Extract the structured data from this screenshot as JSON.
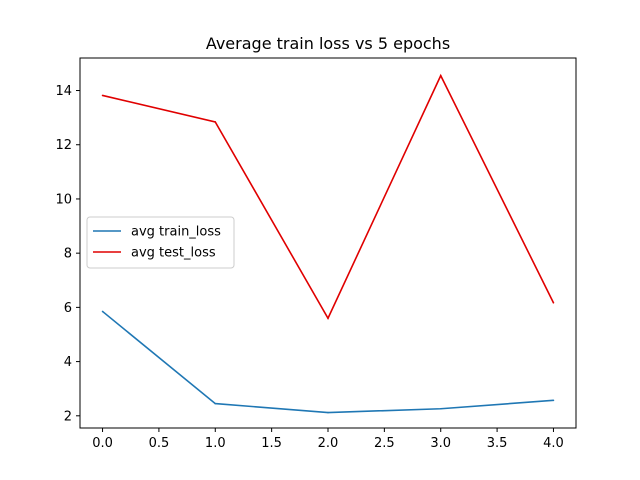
{
  "chart_data": {
    "type": "line",
    "title": "Average train loss vs 5 epochs",
    "xlabel": "",
    "ylabel": "",
    "x": [
      0,
      1,
      2,
      3,
      4
    ],
    "xlim": [
      -0.2,
      4.2
    ],
    "ylim": [
      1.55,
      15.2
    ],
    "xticks": [
      0.0,
      0.5,
      1.0,
      1.5,
      2.0,
      2.5,
      3.0,
      3.5,
      4.0
    ],
    "xtick_labels": [
      "0.0",
      "0.5",
      "1.0",
      "1.5",
      "2.0",
      "2.5",
      "3.0",
      "3.5",
      "4.0"
    ],
    "yticks": [
      2,
      4,
      6,
      8,
      10,
      12,
      14
    ],
    "ytick_labels": [
      "2",
      "4",
      "6",
      "8",
      "10",
      "12",
      "14"
    ],
    "grid": false,
    "legend_position": "center-left",
    "series": [
      {
        "name": "avg train_loss",
        "color": "#1f77b4",
        "values": [
          5.85,
          2.45,
          2.12,
          2.26,
          2.57
        ]
      },
      {
        "name": "avg test_loss",
        "color": "#e00000",
        "values": [
          13.82,
          12.84,
          5.6,
          14.55,
          6.17
        ]
      }
    ]
  }
}
